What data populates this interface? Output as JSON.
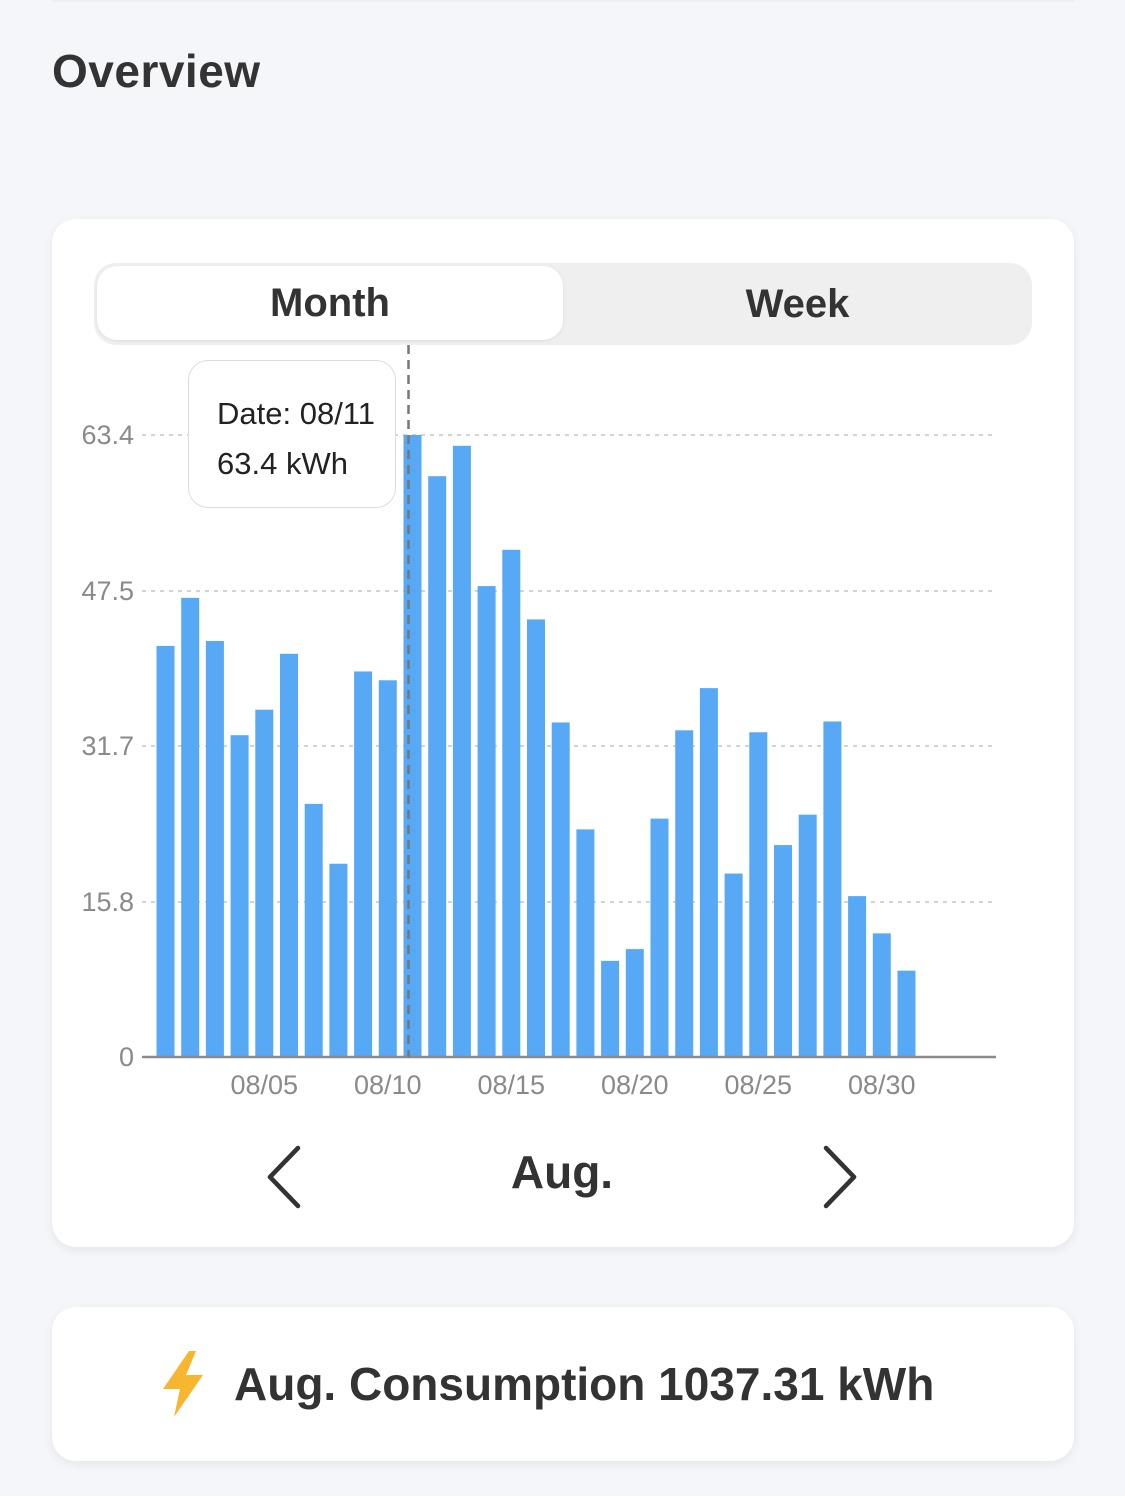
{
  "page": {
    "title": "Overview"
  },
  "tabs": [
    {
      "label": "Month",
      "active": true
    },
    {
      "label": "Week",
      "active": false
    }
  ],
  "tooltip": {
    "date_line": "Date: 08/11",
    "value_line": "63.4 kWh"
  },
  "navigation": {
    "month_label": "Aug.",
    "prev_icon": "chevron-left-icon",
    "next_icon": "chevron-right-icon"
  },
  "summary": {
    "icon": "lightning-bolt-icon",
    "text": "Aug. Consumption 1037.31 kWh"
  },
  "colors": {
    "bar": "#58a9f5",
    "bolt": "#f7b630",
    "grid": "#d4d4d4",
    "axis": "#8a8a8a",
    "text": "#333333"
  },
  "chart_data": {
    "type": "bar",
    "unit": "kWh",
    "x": [
      "08/01",
      "08/02",
      "08/03",
      "08/04",
      "08/05",
      "08/06",
      "08/07",
      "08/08",
      "08/09",
      "08/10",
      "08/11",
      "08/12",
      "08/13",
      "08/14",
      "08/15",
      "08/16",
      "08/17",
      "08/18",
      "08/19",
      "08/20",
      "08/21",
      "08/22",
      "08/23",
      "08/24",
      "08/25",
      "08/26",
      "08/27",
      "08/28",
      "08/29",
      "08/30",
      "08/31"
    ],
    "values": [
      41.9,
      46.8,
      42.4,
      32.8,
      35.4,
      41.1,
      25.8,
      19.7,
      39.3,
      38.4,
      63.4,
      59.2,
      62.3,
      48.0,
      51.7,
      44.6,
      34.1,
      23.2,
      9.8,
      11.0,
      24.3,
      33.3,
      37.6,
      18.7,
      33.1,
      21.6,
      24.7,
      34.2,
      16.4,
      12.6,
      8.8
    ],
    "yticks": [
      "0",
      "15.8",
      "31.7",
      "47.5",
      "63.4"
    ],
    "ylim": [
      0,
      63.4
    ],
    "xticks": [
      "08/05",
      "08/10",
      "08/15",
      "08/20",
      "08/25",
      "08/30"
    ],
    "highlight": "08/11",
    "grid": true
  }
}
